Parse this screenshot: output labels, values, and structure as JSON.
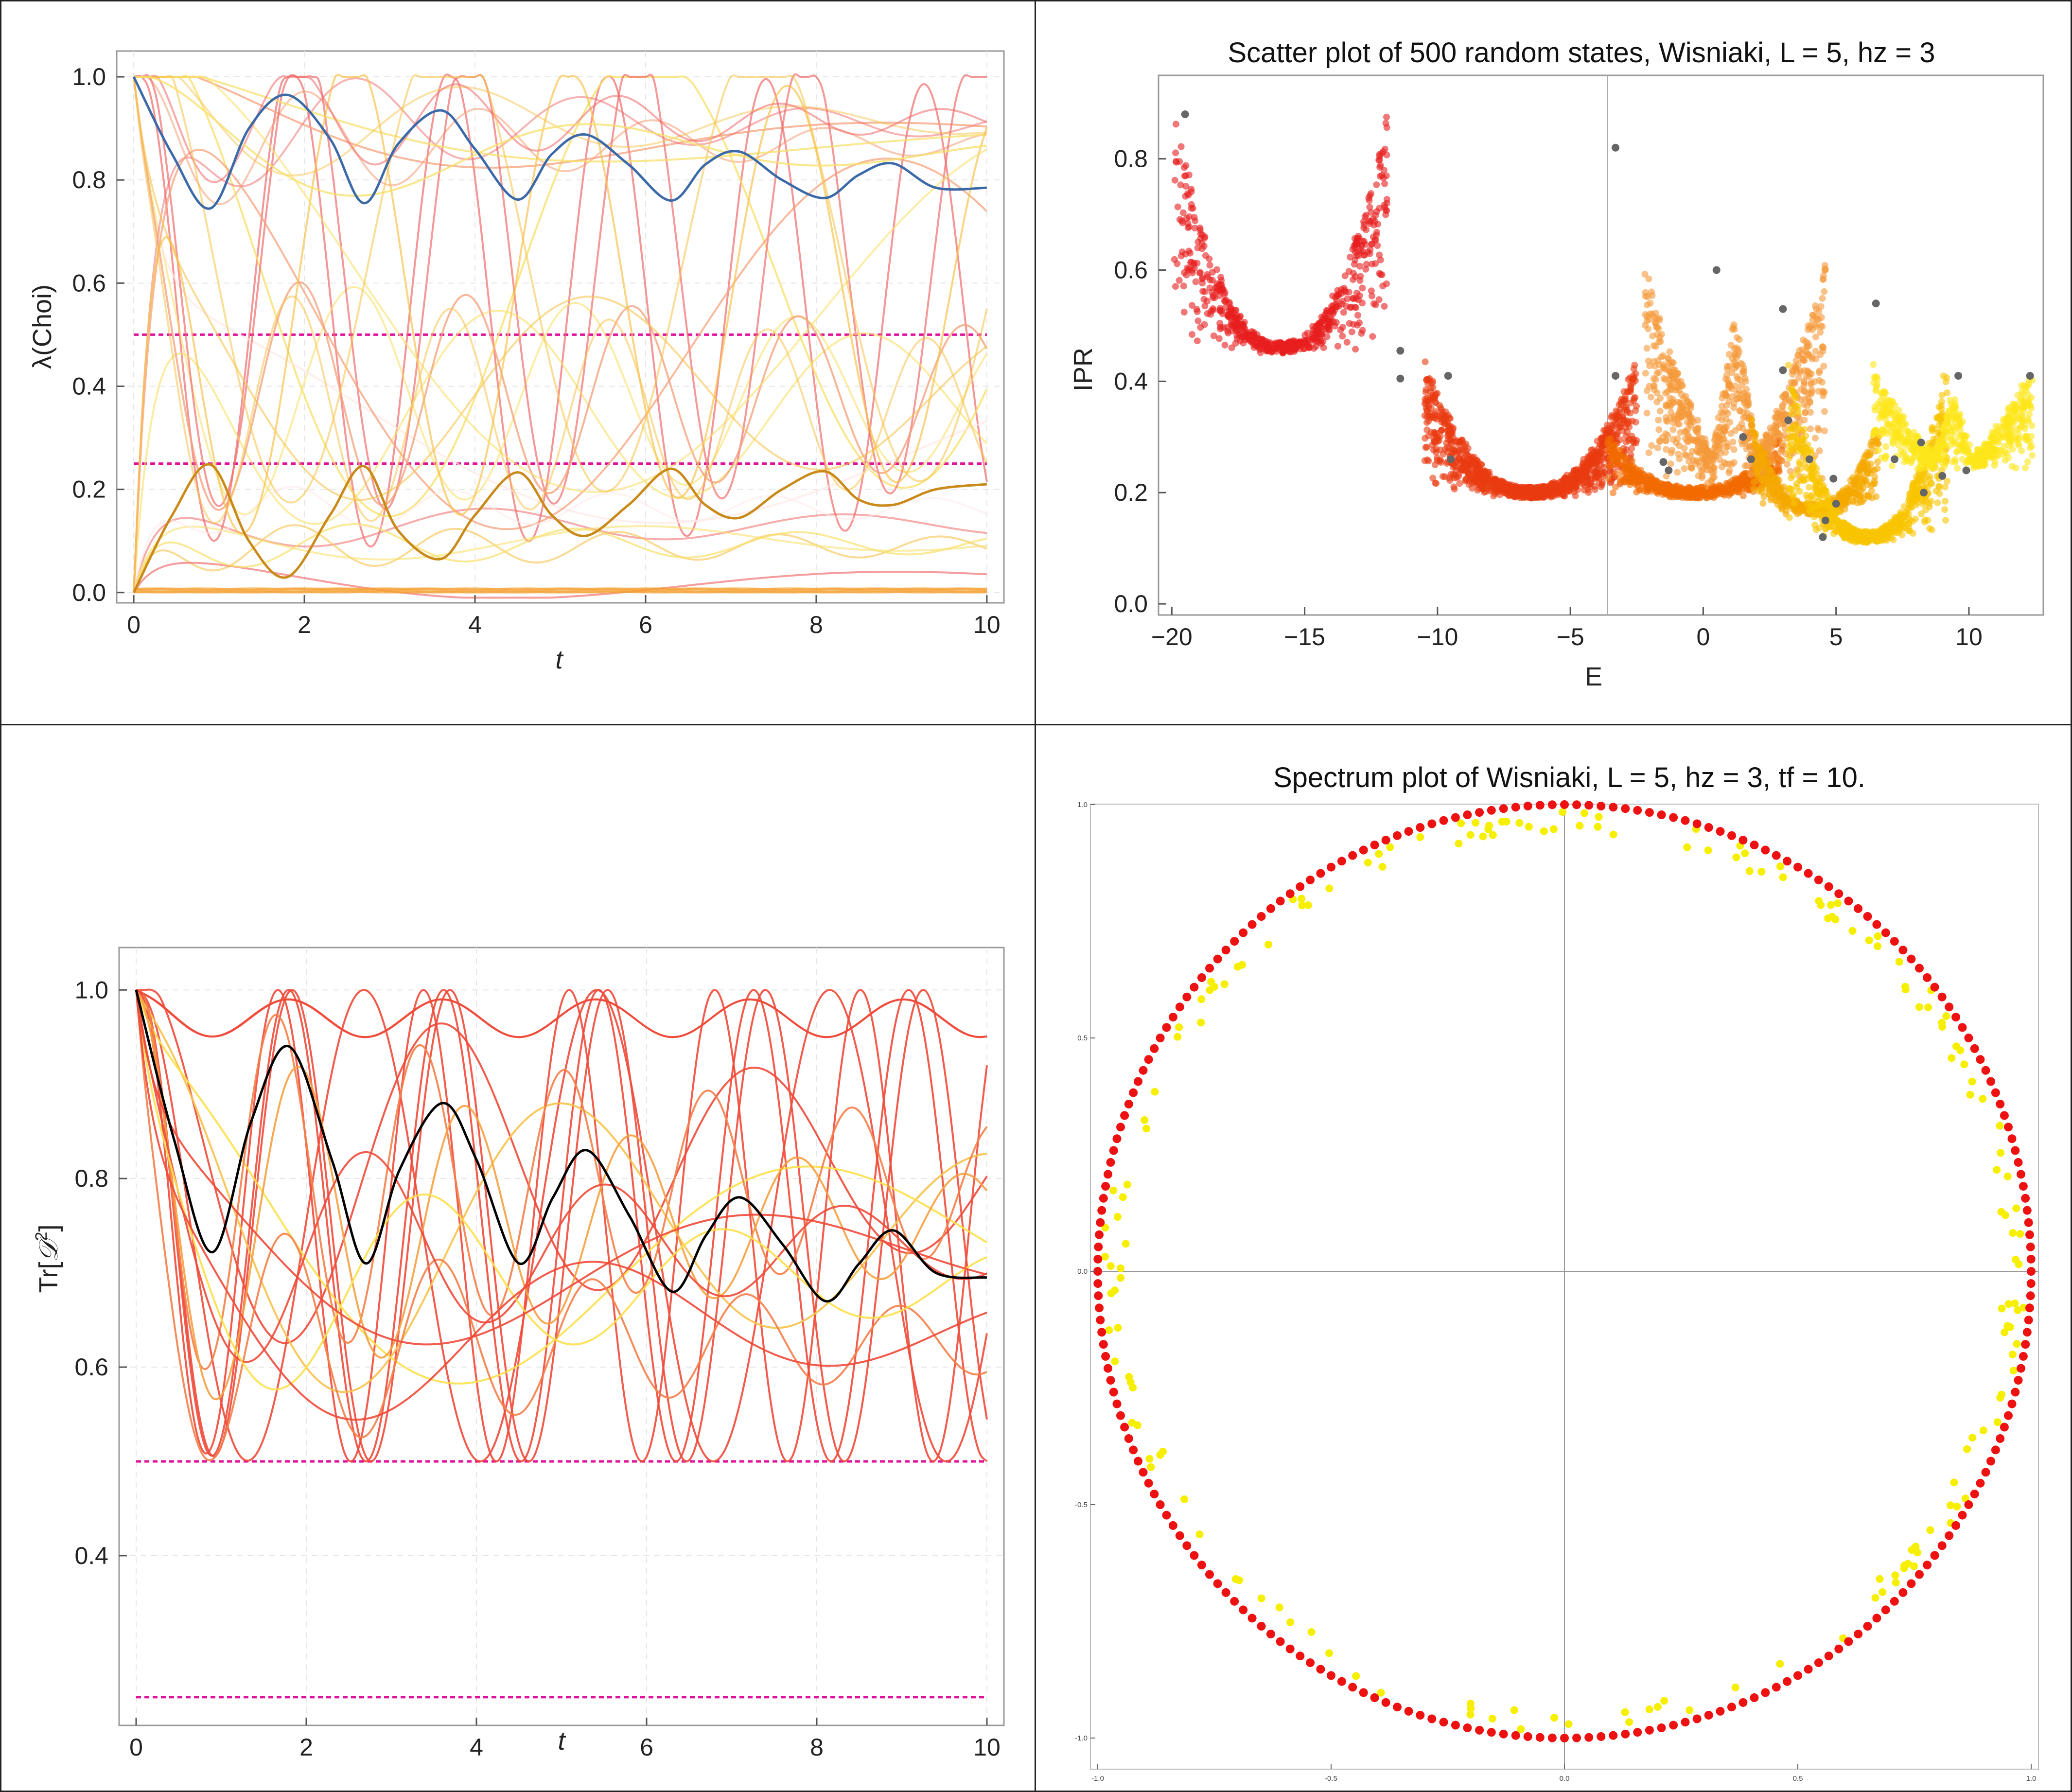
{
  "panels": {
    "top_left": {
      "xlabel": "t",
      "ylabel": "λ(Choi)"
    },
    "top_right": {
      "title": "Scatter plot of 500 random states, Wisniaki, L = 5, hz = 3",
      "xlabel": "E",
      "ylabel": "IPR"
    },
    "bottom_left": {
      "xlabel": "t",
      "ylabel_main": "Tr[",
      "ylabel_sym": "𝒟",
      "ylabel_sup": "2",
      "ylabel_end": "]"
    },
    "bottom_right": {
      "title": "Spectrum plot of Wisniaki, L = 5, hz = 3, tf = 10."
    }
  },
  "chart_data": [
    {
      "id": "choi",
      "type": "line",
      "xlabel": "t",
      "ylabel": "λ(Choi)",
      "xlim": [
        -0.2,
        10.2
      ],
      "ylim": [
        -0.02,
        1.05
      ],
      "xticks": [
        0,
        2,
        4,
        6,
        8,
        10
      ],
      "yticks": [
        0.0,
        0.2,
        0.4,
        0.6,
        0.8,
        1.0
      ],
      "hlines": [
        0.5,
        0.25
      ],
      "hline_color": "#e0109a",
      "colors": [
        "#f06a6a",
        "#f5a07a",
        "#f7c24a",
        "#f8e06a",
        "#fde8e6",
        "#f5a030"
      ],
      "highlight": [
        {
          "name": "top eigenvalue",
          "color": "#3c6aa8",
          "points": [
            [
              0,
              1.0
            ],
            [
              0.45,
              0.85
            ],
            [
              0.9,
              0.745
            ],
            [
              1.35,
              0.9
            ],
            [
              1.8,
              0.965
            ],
            [
              2.3,
              0.88
            ],
            [
              2.7,
              0.755
            ],
            [
              3.1,
              0.87
            ],
            [
              3.6,
              0.935
            ],
            [
              4.0,
              0.86
            ],
            [
              4.5,
              0.762
            ],
            [
              4.9,
              0.85
            ],
            [
              5.3,
              0.888
            ],
            [
              5.8,
              0.83
            ],
            [
              6.3,
              0.76
            ],
            [
              6.7,
              0.83
            ],
            [
              7.1,
              0.855
            ],
            [
              7.6,
              0.8
            ],
            [
              8.1,
              0.765
            ],
            [
              8.5,
              0.81
            ],
            [
              8.9,
              0.832
            ],
            [
              9.4,
              0.785
            ],
            [
              10,
              0.785
            ]
          ]
        },
        {
          "name": "second eigenvalue",
          "color": "#c98a1a",
          "points": [
            [
              0,
              0.0
            ],
            [
              0.45,
              0.15
            ],
            [
              0.9,
              0.248
            ],
            [
              1.35,
              0.1
            ],
            [
              1.8,
              0.03
            ],
            [
              2.3,
              0.15
            ],
            [
              2.7,
              0.245
            ],
            [
              3.1,
              0.12
            ],
            [
              3.6,
              0.065
            ],
            [
              4.0,
              0.15
            ],
            [
              4.5,
              0.233
            ],
            [
              4.9,
              0.15
            ],
            [
              5.3,
              0.11
            ],
            [
              5.8,
              0.17
            ],
            [
              6.3,
              0.24
            ],
            [
              6.7,
              0.17
            ],
            [
              7.1,
              0.145
            ],
            [
              7.6,
              0.2
            ],
            [
              8.1,
              0.235
            ],
            [
              8.5,
              0.18
            ],
            [
              8.9,
              0.17
            ],
            [
              9.4,
              0.2
            ],
            [
              10,
              0.21
            ]
          ]
        }
      ]
    },
    {
      "id": "ipr",
      "type": "scatter",
      "title": "Scatter plot of 500 random states, Wisniaki, L = 5, hz = 3",
      "xlabel": "E",
      "ylabel": "IPR",
      "xlim": [
        -20.5,
        12.8
      ],
      "ylim": [
        -0.02,
        0.95
      ],
      "xticks": [
        -20,
        -15,
        -10,
        -5,
        0,
        5,
        10
      ],
      "yticks": [
        0.0,
        0.2,
        0.4,
        0.6,
        0.8
      ],
      "vline": -3.6,
      "clusters": [
        {
          "center": -15.9,
          "halfwidth": 4.0,
          "min": 0.46,
          "max": 0.88,
          "color": "#e81e1e",
          "n": 650,
          "mode": "u"
        },
        {
          "center": -6.5,
          "halfwidth": 4.0,
          "min": 0.2,
          "max": 0.44,
          "color": "#ea3a10",
          "n": 1100,
          "mode": "u"
        },
        {
          "center": -0.3,
          "halfwidth": 3.3,
          "min": 0.2,
          "max": 0.3,
          "color": "#f26a00",
          "n": 600,
          "mode": "u"
        },
        {
          "center": 1.2,
          "halfwidth": 3.4,
          "min": 0.22,
          "max": 0.78,
          "color": "#f59a3a",
          "n": 800,
          "mode": "w"
        },
        {
          "center": 4.2,
          "halfwidth": 2.4,
          "min": 0.17,
          "max": 0.33,
          "color": "#f5a800",
          "n": 500,
          "mode": "u"
        },
        {
          "center": 6.2,
          "halfwidth": 3.0,
          "min": 0.12,
          "max": 0.44,
          "color": "#f8c400",
          "n": 700,
          "mode": "u"
        },
        {
          "center": 9.4,
          "halfwidth": 3.0,
          "min": 0.24,
          "max": 0.5,
          "color": "#fde61a",
          "n": 600,
          "mode": "w"
        }
      ],
      "gray_points": [
        [
          -19.5,
          0.88
        ],
        [
          -11.4,
          0.455
        ],
        [
          -11.4,
          0.405
        ],
        [
          -9.6,
          0.41
        ],
        [
          -9.5,
          0.26
        ],
        [
          -3.3,
          0.82
        ],
        [
          -3.3,
          0.41
        ],
        [
          -1.5,
          0.255
        ],
        [
          -1.3,
          0.24
        ],
        [
          0.5,
          0.6
        ],
        [
          1.5,
          0.3
        ],
        [
          1.8,
          0.26
        ],
        [
          3.0,
          0.53
        ],
        [
          3.0,
          0.42
        ],
        [
          3.2,
          0.33
        ],
        [
          4.0,
          0.26
        ],
        [
          4.5,
          0.12
        ],
        [
          4.6,
          0.15
        ],
        [
          4.9,
          0.225
        ],
        [
          5.0,
          0.18
        ],
        [
          6.5,
          0.54
        ],
        [
          7.2,
          0.26
        ],
        [
          8.2,
          0.29
        ],
        [
          8.3,
          0.2
        ],
        [
          9.0,
          0.23
        ],
        [
          9.6,
          0.41
        ],
        [
          12.3,
          0.41
        ],
        [
          9.9,
          0.24
        ]
      ]
    },
    {
      "id": "purity",
      "type": "line",
      "xlabel": "t",
      "ylabel": "Tr[𝒟²]",
      "xlim": [
        -0.2,
        10.2
      ],
      "ylim": [
        0.22,
        1.045
      ],
      "xticks": [
        0,
        2,
        4,
        6,
        8,
        10
      ],
      "yticks": [
        0.4,
        0.6,
        0.8,
        1.0
      ],
      "hlines": [
        0.5,
        0.25
      ],
      "hline_color": "#e0109a",
      "colors": [
        "#f04a3a",
        "#f5804a",
        "#f7a040",
        "#f8c24a",
        "#fde04a"
      ],
      "highlight": [
        {
          "name": "average",
          "color": "#000000",
          "points": [
            [
              0,
              1.0
            ],
            [
              0.45,
              0.84
            ],
            [
              0.9,
              0.722
            ],
            [
              1.35,
              0.86
            ],
            [
              1.8,
              0.94
            ],
            [
              2.3,
              0.82
            ],
            [
              2.7,
              0.71
            ],
            [
              3.1,
              0.81
            ],
            [
              3.6,
              0.88
            ],
            [
              4.0,
              0.82
            ],
            [
              4.5,
              0.71
            ],
            [
              4.9,
              0.78
            ],
            [
              5.3,
              0.83
            ],
            [
              5.8,
              0.76
            ],
            [
              6.3,
              0.68
            ],
            [
              6.7,
              0.74
            ],
            [
              7.1,
              0.78
            ],
            [
              7.6,
              0.73
            ],
            [
              8.1,
              0.67
            ],
            [
              8.5,
              0.71
            ],
            [
              8.9,
              0.745
            ],
            [
              9.4,
              0.7
            ],
            [
              10,
              0.695
            ]
          ]
        }
      ]
    },
    {
      "id": "spectrum",
      "type": "scatter",
      "title": "Spectrum plot of Wisniaki, L = 5, hz = 3, tf = 10.",
      "xlim": [
        -1.02,
        1.02
      ],
      "ylim": [
        -1.02,
        1.02
      ],
      "xticks": [
        -1.0,
        -0.5,
        0.0,
        0.5,
        1.0
      ],
      "yticks": [
        -1.0,
        -0.5,
        0.0,
        0.5,
        1.0
      ],
      "xtick_labels": [
        "-1.0",
        "-0.5",
        "0.0",
        "0.5",
        "1.0"
      ],
      "ytick_labels": [
        "-1.0",
        "-0.5",
        "0.0",
        "0.5",
        "1.0"
      ],
      "series": [
        {
          "name": "unit circle",
          "color": "#ee1111",
          "n_points": 240,
          "radius": 1.0
        },
        {
          "name": "inner points",
          "color": "#f6f000",
          "n_points": 180,
          "radius_min": 0.94,
          "radius_max": 0.99
        }
      ]
    }
  ]
}
